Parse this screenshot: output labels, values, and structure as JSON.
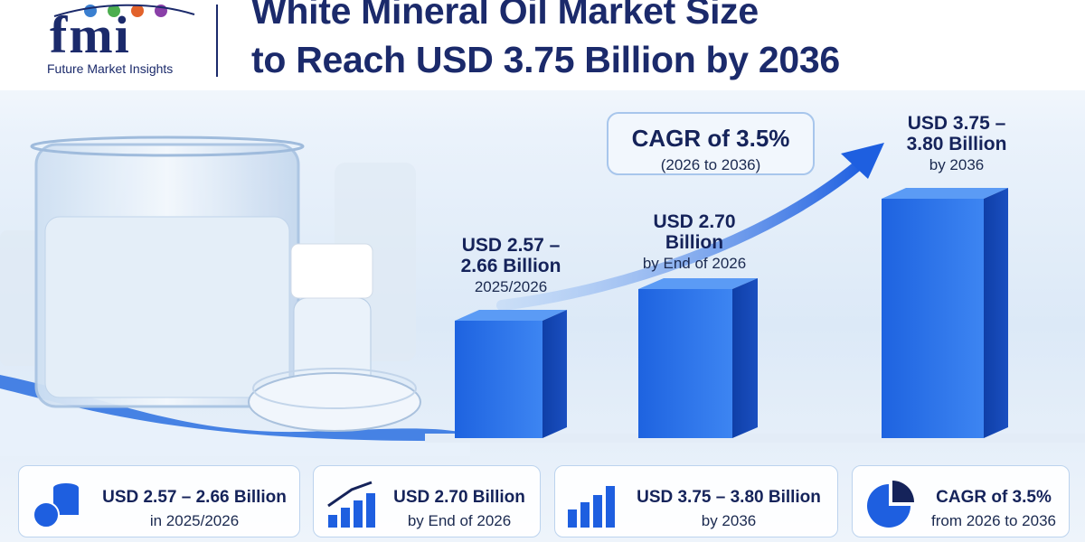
{
  "logo": {
    "mark": "fmi",
    "tagline": "Future Market Insights"
  },
  "header": {
    "title_lines": [
      "White Mineral Oil Market Size",
      "to Reach USD 3.75 Billion by 2036"
    ]
  },
  "cagr_callout": {
    "title": "CAGR of 3.5%",
    "subtitle": "(2026 to 2036)"
  },
  "bar_labels": [
    {
      "lines": [
        "USD 2.57 –",
        "2.66 Billion"
      ],
      "sub": "2025/2026"
    },
    {
      "lines": [
        "USD 2.70",
        "Billion"
      ],
      "sub": "by End of 2026"
    },
    {
      "lines": [
        "USD 3.75 –",
        "3.80 Billion"
      ],
      "sub": "by 2036"
    }
  ],
  "cards": [
    {
      "title": "USD 2.57 – 2.66 Billion",
      "sub": "in 2025/2026"
    },
    {
      "title": "USD 2.70 Billion",
      "sub": "by End of 2026"
    },
    {
      "title": "USD 3.75 – 3.80 Billion",
      "sub": "by 2036"
    },
    {
      "title": "CAGR of 3.5%",
      "sub": "from 2026 to 2036"
    }
  ]
}
